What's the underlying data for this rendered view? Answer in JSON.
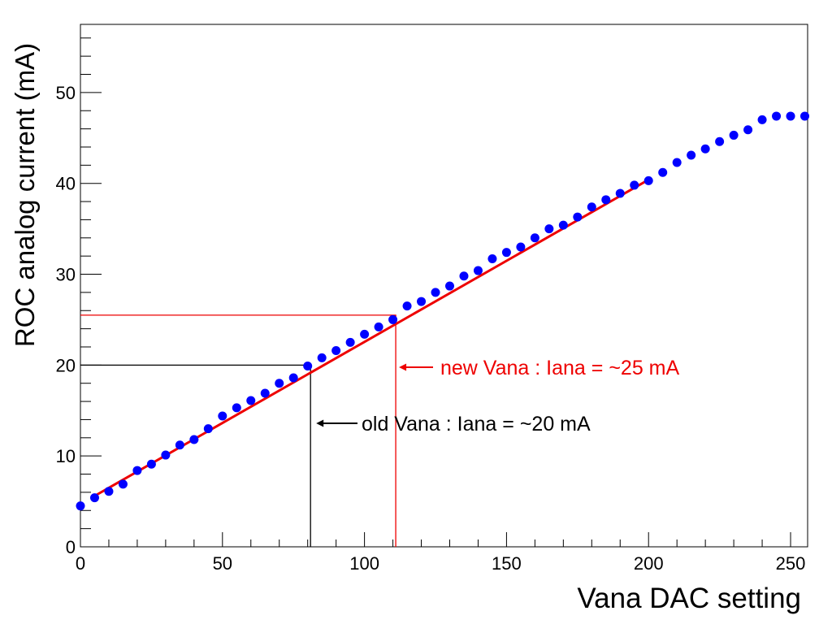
{
  "chart_data": {
    "type": "scatter",
    "title": "",
    "xlabel": "Vana DAC setting",
    "ylabel": "ROC analog current (mA)",
    "xlim": [
      0,
      256
    ],
    "ylim": [
      0,
      57.5
    ],
    "x_ticks": [
      0,
      50,
      100,
      150,
      200,
      250
    ],
    "x_tick_labels": [
      "0",
      "50",
      "100",
      "150",
      "200",
      "250"
    ],
    "y_ticks": [
      0,
      10,
      20,
      30,
      40,
      50
    ],
    "y_tick_labels": [
      "0",
      "10",
      "20",
      "30",
      "40",
      "50"
    ],
    "grid": false,
    "colors": {
      "points": "#0000ff",
      "fit": "#ee0000",
      "old": "#000000",
      "new": "#ee0000"
    },
    "series": [
      {
        "x": [
          0,
          5,
          10,
          15,
          20,
          25,
          30,
          35,
          40,
          45,
          50,
          55,
          60,
          65,
          70,
          75,
          80,
          85,
          90,
          95,
          100,
          105,
          110,
          115,
          120,
          125,
          130,
          135,
          140,
          145,
          150,
          155,
          160,
          165,
          170,
          175,
          180,
          185,
          190,
          195,
          200,
          205,
          210,
          215,
          220,
          225,
          230,
          235,
          240,
          245,
          250,
          255
        ],
        "y": [
          4.5,
          5.4,
          6.1,
          6.9,
          8.4,
          9.1,
          10.1,
          11.2,
          11.8,
          13.0,
          14.4,
          15.3,
          16.1,
          16.9,
          18.0,
          18.6,
          19.9,
          20.8,
          21.6,
          22.5,
          23.4,
          24.2,
          25.0,
          26.5,
          27.0,
          28.0,
          28.7,
          29.8,
          30.4,
          31.7,
          32.4,
          33.0,
          34.0,
          35.0,
          35.4,
          36.3,
          37.4,
          38.2,
          38.9,
          39.8,
          40.3,
          41.2,
          42.3,
          43.1,
          43.8,
          44.6,
          45.3,
          45.9,
          47.0,
          47.4,
          47.4,
          47.4
        ]
      }
    ],
    "fit": {
      "x": [
        5,
        200
      ],
      "y": [
        5.6,
        40.4
      ]
    },
    "annotations": [
      {
        "id": "old",
        "text": "old Vana : Iana = ~20 mA",
        "x": 81,
        "y": 20
      },
      {
        "id": "new",
        "text": "new Vana : Iana = ~25 mA",
        "x": 111,
        "y": 25.5
      }
    ]
  }
}
